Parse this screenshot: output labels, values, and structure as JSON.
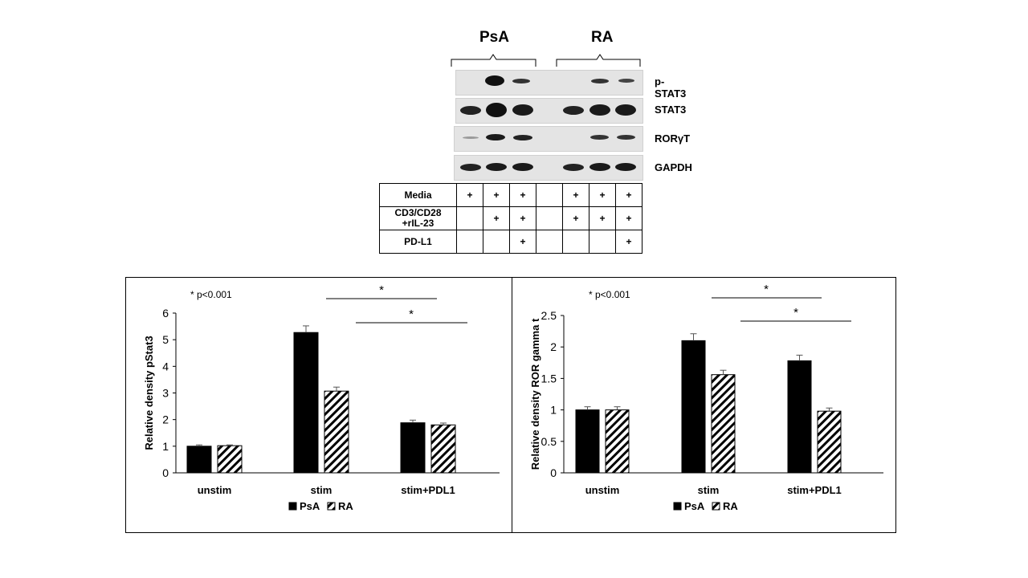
{
  "blot": {
    "groups": [
      "PsA",
      "RA"
    ],
    "proteins": [
      "p-STAT3",
      "STAT3",
      "RORγT",
      "GAPDH"
    ],
    "conditions": [
      {
        "label_lines": [
          "Media"
        ],
        "marks": [
          "+",
          "+",
          "+",
          "",
          "+",
          "+",
          "+"
        ]
      },
      {
        "label_lines": [
          "CD3/CD28",
          "+rIL-23"
        ],
        "marks": [
          "",
          "+",
          "+",
          "",
          "+",
          "+",
          "+"
        ]
      },
      {
        "label_lines": [
          "PD-L1"
        ],
        "marks": [
          "",
          "",
          "+",
          "",
          "",
          "",
          "+"
        ]
      }
    ]
  },
  "chart_data": [
    {
      "type": "bar",
      "categories": [
        "unstim",
        "stim",
        "stim+PDL1"
      ],
      "series": [
        {
          "name": "PsA",
          "values": [
            1.0,
            5.27,
            1.88
          ],
          "errors": [
            0.05,
            0.25,
            0.1
          ],
          "fill": "solid",
          "color": "#000000"
        },
        {
          "name": "RA",
          "values": [
            1.02,
            3.07,
            1.8
          ],
          "errors": [
            0.03,
            0.15,
            0.07
          ],
          "fill": "hatched",
          "color": "#000000"
        }
      ],
      "ylabel": "Relative density pStat3",
      "ylim": [
        0,
        6
      ],
      "yticks": [
        0,
        1,
        2,
        3,
        4,
        5,
        6
      ],
      "annotation": "* p<0.001",
      "significance": [
        {
          "label": "*",
          "from": 0,
          "to": 1.3
        },
        {
          "label": "*",
          "from": 0.4,
          "to": 1.7
        }
      ]
    },
    {
      "type": "bar",
      "categories": [
        "unstim",
        "stim",
        "stim+PDL1"
      ],
      "series": [
        {
          "name": "PsA",
          "values": [
            1.0,
            2.1,
            1.78
          ],
          "errors": [
            0.05,
            0.11,
            0.09
          ],
          "fill": "solid",
          "color": "#000000"
        },
        {
          "name": "RA",
          "values": [
            1.0,
            1.56,
            0.98
          ],
          "errors": [
            0.05,
            0.07,
            0.05
          ],
          "fill": "hatched",
          "color": "#000000"
        }
      ],
      "ylabel": "Relative density ROR gamma t",
      "ylim": [
        0,
        2.5
      ],
      "yticks": [
        0,
        0.5,
        1,
        1.5,
        2,
        2.5
      ],
      "annotation": "* p<0.001",
      "significance": [
        {
          "label": "*",
          "from": 0,
          "to": 1.3
        },
        {
          "label": "*",
          "from": 0.4,
          "to": 1.7
        }
      ]
    }
  ]
}
